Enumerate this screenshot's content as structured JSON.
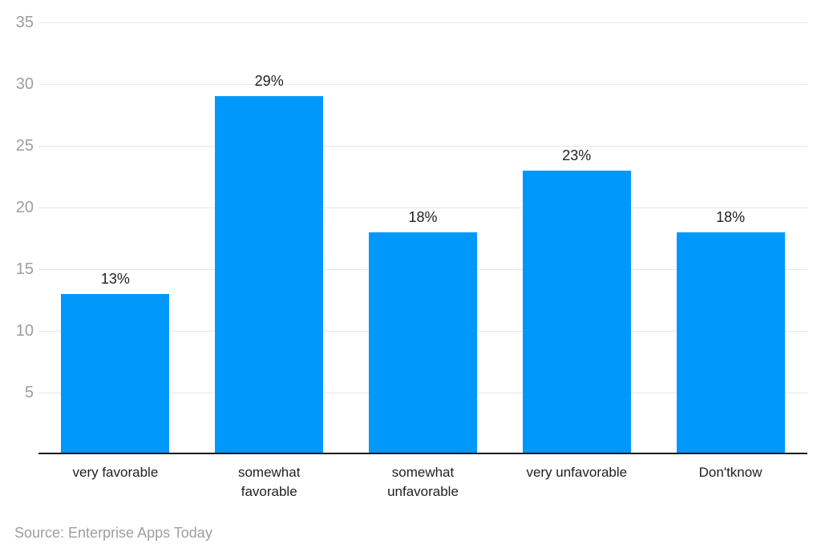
{
  "chart_data": {
    "type": "bar",
    "title": "",
    "xlabel": "",
    "ylabel": "",
    "categories": [
      "very favorable",
      "somewhat favorable",
      "somewhat unfavorable",
      "very unfavorable",
      "Don'tknow"
    ],
    "category_tick_labels": [
      "very favorable",
      "somewhat\nfavorable",
      "somewhat\nunfavorable",
      "very unfavorable",
      "Don'tknow"
    ],
    "values": [
      13,
      29,
      18,
      23,
      18
    ],
    "data_labels": [
      "13%",
      "29%",
      "18%",
      "23%",
      "18%"
    ],
    "ylim": [
      0,
      35
    ],
    "yticks": [
      5,
      10,
      15,
      20,
      25,
      30,
      35
    ],
    "grid": true,
    "legend": false,
    "bar_color": "#0099fb"
  },
  "colors": {
    "bar": "#0099fb",
    "gridline": "#e7e7e7",
    "axis_line": "#1c1c1c",
    "y_tick_label": "#9e9e9e",
    "value_label": "#212121",
    "category_label": "#212121",
    "source_text": "#9e9e9e",
    "background": "#ffffff"
  },
  "footer": {
    "source": "Source: Enterprise Apps Today"
  }
}
